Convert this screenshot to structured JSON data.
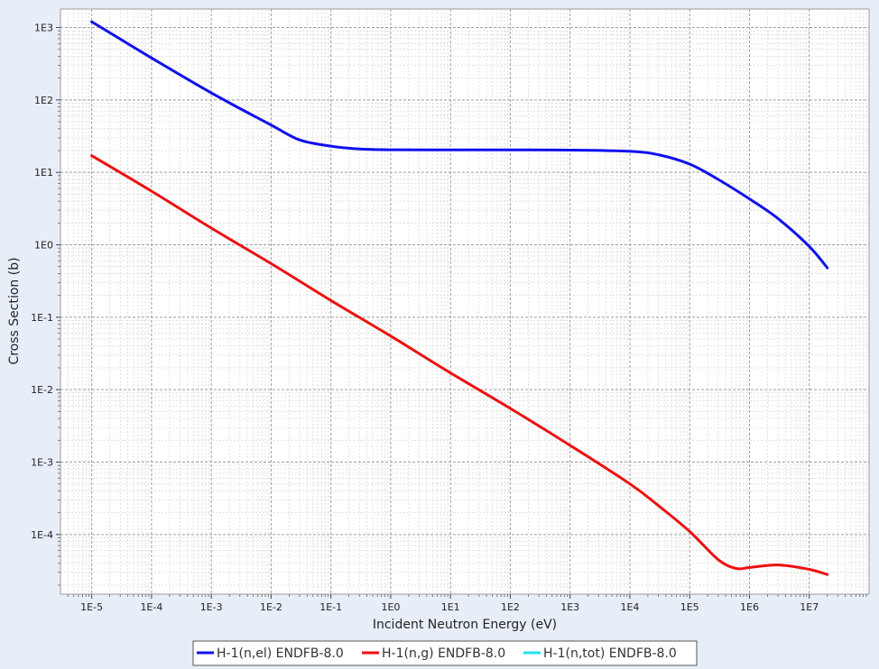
{
  "chart_data": {
    "type": "line",
    "xlabel": "Incident Neutron Energy (eV)",
    "ylabel": "Cross Section (b)",
    "xscale": "log",
    "yscale": "log",
    "xlim": [
      3e-06,
      100000000.0
    ],
    "ylim": [
      1.5e-05,
      1800.0
    ],
    "x_ticks": [
      {
        "value": 1e-05,
        "label": "1E-5"
      },
      {
        "value": 0.0001,
        "label": "1E-4"
      },
      {
        "value": 0.001,
        "label": "1E-3"
      },
      {
        "value": 0.01,
        "label": "1E-2"
      },
      {
        "value": 0.1,
        "label": "1E-1"
      },
      {
        "value": 1.0,
        "label": "1E0"
      },
      {
        "value": 10.0,
        "label": "1E1"
      },
      {
        "value": 100.0,
        "label": "1E2"
      },
      {
        "value": 1000.0,
        "label": "1E3"
      },
      {
        "value": 10000.0,
        "label": "1E4"
      },
      {
        "value": 100000.0,
        "label": "1E5"
      },
      {
        "value": 1000000.0,
        "label": "1E6"
      },
      {
        "value": 10000000.0,
        "label": "1E7"
      }
    ],
    "y_ticks": [
      {
        "value": 1000.0,
        "label": "1E3"
      },
      {
        "value": 100.0,
        "label": "1E2"
      },
      {
        "value": 10.0,
        "label": "1E1"
      },
      {
        "value": 1.0,
        "label": "1E0"
      },
      {
        "value": 0.1,
        "label": "1E-1"
      },
      {
        "value": 0.01,
        "label": "1E-2"
      },
      {
        "value": 0.001,
        "label": "1E-3"
      },
      {
        "value": 0.0001,
        "label": "1E-4"
      }
    ],
    "grid": true,
    "legend_position": "bottom-center",
    "series": [
      {
        "name": "H-1(n,el) ENDFB-8.0",
        "color": "#1010ee",
        "x": [
          1e-05,
          0.0001,
          0.001,
          0.01,
          0.03,
          0.1,
          0.3,
          1,
          10,
          100,
          1000,
          10000.0,
          30000.0,
          100000.0,
          300000.0,
          1000000.0,
          3000000.0,
          10000000.0,
          20000000.0
        ],
        "y": [
          1200,
          380,
          125,
          45,
          28,
          23,
          21,
          20.5,
          20.4,
          20.4,
          20.3,
          19.5,
          17.5,
          13,
          8,
          4.3,
          2.3,
          0.95,
          0.48
        ]
      },
      {
        "name": "H-1(n,g) ENDFB-8.0",
        "color": "#ee1010",
        "x": [
          1e-05,
          0.0001,
          0.001,
          0.01,
          0.1,
          1,
          10,
          100,
          1000,
          10000.0,
          30000.0,
          100000.0,
          300000.0,
          600000.0,
          1000000.0,
          3000000.0,
          10000000.0,
          20000000.0
        ],
        "y": [
          17,
          5.5,
          1.7,
          0.55,
          0.17,
          0.055,
          0.017,
          0.0055,
          0.0017,
          0.0005,
          0.00025,
          0.00011,
          4.5e-05,
          3.4e-05,
          3.5e-05,
          3.8e-05,
          3.3e-05,
          2.8e-05
        ]
      },
      {
        "name": "H-1(n,tot) ENDFB-8.0",
        "color": "#20e0ee",
        "x": [],
        "y": []
      }
    ]
  }
}
